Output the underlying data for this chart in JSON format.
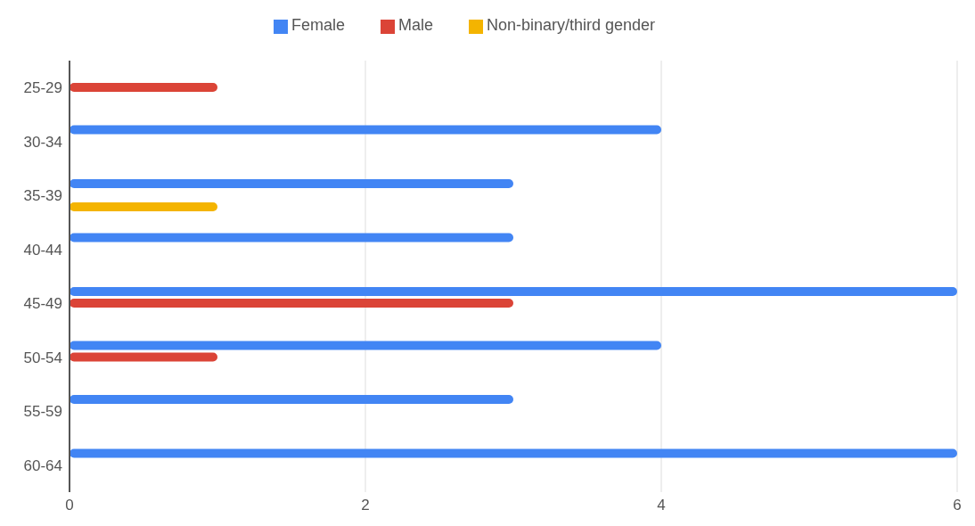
{
  "chart_data": {
    "type": "bar",
    "orientation": "horizontal",
    "categories": [
      "25-29",
      "30-34",
      "35-39",
      "40-44",
      "45-49",
      "50-54",
      "55-59",
      "60-64"
    ],
    "series": [
      {
        "name": "Female",
        "color": "#4285f4",
        "values": [
          0,
          4,
          3,
          3,
          6,
          4,
          3,
          6
        ]
      },
      {
        "name": "Male",
        "color": "#db4437",
        "values": [
          1,
          0,
          0,
          0,
          3,
          1,
          0,
          0
        ]
      },
      {
        "name": "Non-binary/third gender",
        "color": "#f4b400",
        "values": [
          0,
          0,
          1,
          0,
          0,
          0,
          0,
          0
        ]
      }
    ],
    "xlim": [
      0,
      6
    ],
    "xticks": [
      0,
      2,
      4,
      6
    ],
    "grid": "x",
    "legend": "top"
  }
}
